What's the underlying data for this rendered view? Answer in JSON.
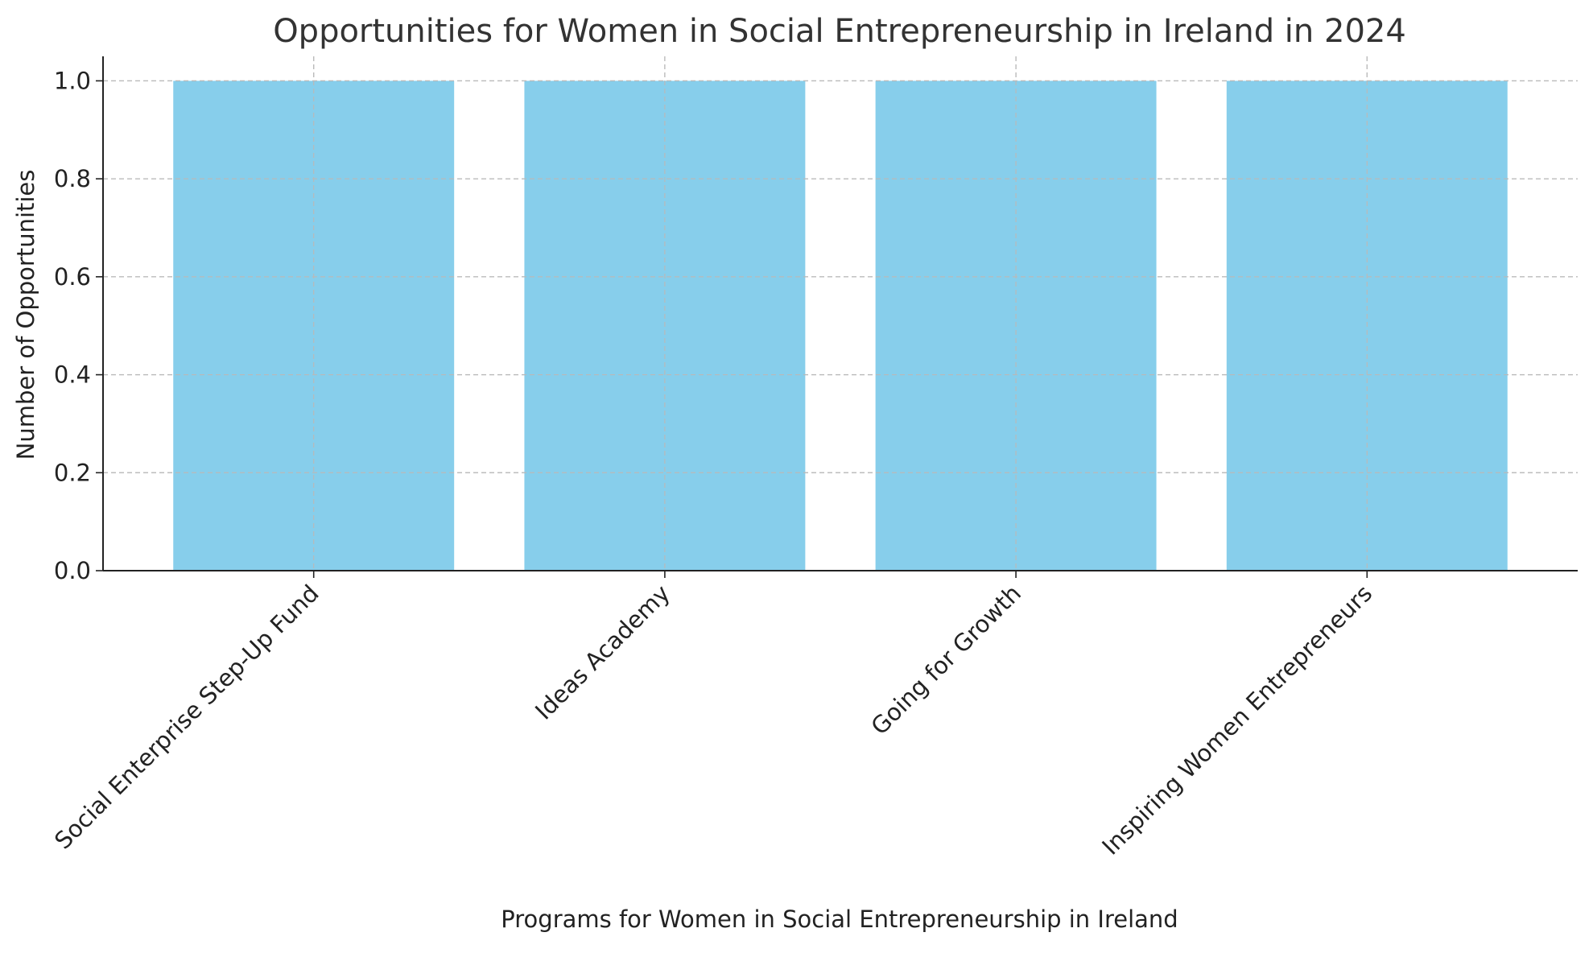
{
  "chart_data": {
    "type": "bar",
    "title": "Opportunities for Women in Social Entrepreneurship in Ireland in 2024",
    "xlabel": "Programs for Women in Social Entrepreneurship in Ireland",
    "ylabel": "Number of Opportunities",
    "categories": [
      "Social Enterprise Step-Up Fund",
      "Ideas Academy",
      "Going for Growth",
      "Inspiring Women Entrepreneurs"
    ],
    "values": [
      1,
      1,
      1,
      1
    ],
    "ylim": [
      0,
      1.05
    ],
    "yticks": [
      "0.0",
      "0.2",
      "0.4",
      "0.6",
      "0.8",
      "1.0"
    ],
    "grid": true,
    "bar_color": "#87CEEB"
  }
}
